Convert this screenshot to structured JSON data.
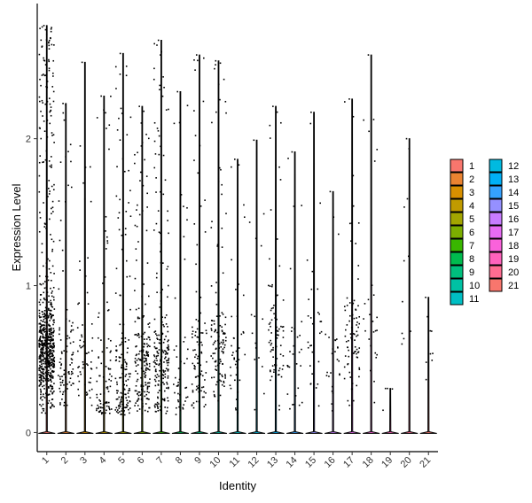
{
  "chart_data": {
    "type": "violin-jitter",
    "xlabel": "Identity",
    "ylabel": "Expression Level",
    "ylim": [
      -0.13,
      2.92
    ],
    "yticks": [
      0,
      1,
      2
    ],
    "grid": false,
    "legend_placement": "right",
    "categories": [
      "1",
      "2",
      "3",
      "4",
      "5",
      "6",
      "7",
      "8",
      "9",
      "10",
      "11",
      "12",
      "13",
      "14",
      "15",
      "16",
      "17",
      "18",
      "19",
      "20",
      "21"
    ],
    "colors": [
      "#F8766D",
      "#EA8331",
      "#D89000",
      "#C09B00",
      "#A3A500",
      "#7CAE00",
      "#39B600",
      "#00BB4E",
      "#00BF7D",
      "#00C1A3",
      "#00BFC4",
      "#00BAE0",
      "#00B0F6",
      "#35A2FF",
      "#9590FF",
      "#C77CFF",
      "#E76BF3",
      "#FA62DB",
      "#FF62BC",
      "#FF6C91",
      "#F8766D"
    ],
    "max_values": [
      2.77,
      2.24,
      2.52,
      2.29,
      2.58,
      2.22,
      2.67,
      2.32,
      2.57,
      2.53,
      1.86,
      1.99,
      2.22,
      1.91,
      2.18,
      1.64,
      2.27,
      2.57,
      0.3,
      2.0,
      0.92
    ],
    "cell_counts": [
      700,
      90,
      60,
      90,
      150,
      190,
      210,
      45,
      90,
      120,
      40,
      15,
      80,
      30,
      30,
      25,
      80,
      25,
      3,
      10,
      8
    ],
    "dense_centers": [
      0.55,
      0.45,
      0.45,
      0.28,
      0.3,
      0.45,
      0.45,
      0.4,
      0.45,
      0.5,
      0.5,
      0.5,
      0.6,
      0.5,
      0.6,
      0.5,
      0.6,
      0.8,
      0.3,
      0.5,
      0.5
    ]
  }
}
